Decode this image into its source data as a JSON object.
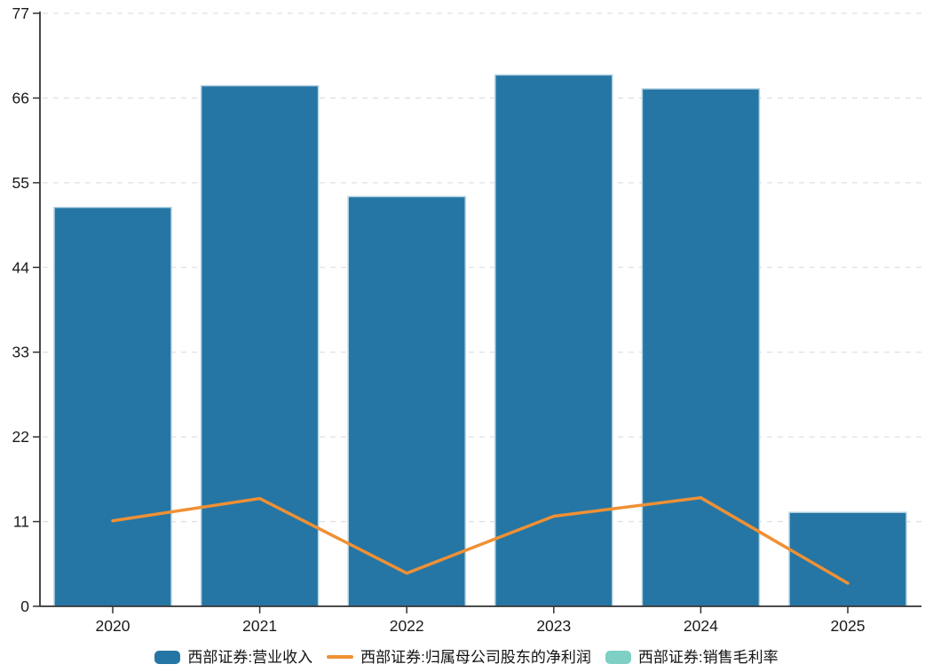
{
  "chart_data": {
    "type": "bar",
    "title": "",
    "categories": [
      "2020",
      "2021",
      "2022",
      "2023",
      "2024",
      "2025"
    ],
    "series": [
      {
        "name": "西部证券:营业收入",
        "type": "bar",
        "color": "#2576a4",
        "border_color": "#b5d4e3",
        "values": [
          51.8,
          67.6,
          53.2,
          69.0,
          67.2,
          12.2
        ]
      },
      {
        "name": "西部证券:归属母公司股东的净利润",
        "type": "line",
        "color": "#ef9035",
        "values": [
          11.1,
          14.0,
          4.3,
          11.7,
          14.1,
          3.0
        ]
      },
      {
        "name": "西部证券:销售毛利率",
        "type": "bar",
        "color": "#7ecfc4",
        "values": []
      }
    ],
    "xlabel": "",
    "ylabel": "",
    "yticks": [
      0,
      11,
      22,
      33,
      44,
      55,
      66,
      77
    ],
    "ylim": [
      0,
      77
    ],
    "grid": "horizontal-dashed",
    "grid_color": "#e0e0e0",
    "axis_color": "#333333",
    "legend_position": "bottom"
  }
}
